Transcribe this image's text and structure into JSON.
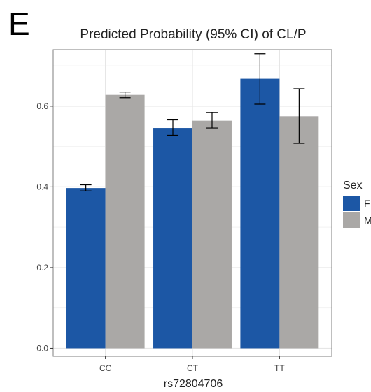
{
  "panel_label": "E",
  "chart_data": {
    "type": "bar",
    "title": "Predicted Probability (95% CI) of CL/P",
    "xlabel": "rs72804706",
    "ylabel": "",
    "categories": [
      "CC",
      "CT",
      "TT"
    ],
    "ylim": [
      -0.02,
      0.74
    ],
    "yticks": [
      0.0,
      0.2,
      0.4,
      0.6
    ],
    "ytick_labels": [
      "0.0",
      "0.2",
      "0.4",
      "0.6"
    ],
    "grid": true,
    "legend": {
      "title": "Sex",
      "placement": "right"
    },
    "series": [
      {
        "name": "F",
        "color": "#1c57a5",
        "values": [
          0.397,
          0.546,
          0.668
        ],
        "ci_low": [
          0.39,
          0.528,
          0.605
        ],
        "ci_high": [
          0.405,
          0.566,
          0.73
        ]
      },
      {
        "name": "M",
        "color": "#aaa8a6",
        "values": [
          0.628,
          0.564,
          0.575
        ],
        "ci_low": [
          0.621,
          0.546,
          0.508
        ],
        "ci_high": [
          0.635,
          0.584,
          0.643
        ]
      }
    ],
    "colors": {
      "panel_background": "#ffffff",
      "grid_major": "#e6e6e6",
      "grid_minor": "#f2f2f2",
      "panel_border": "#7f7f7f"
    }
  }
}
